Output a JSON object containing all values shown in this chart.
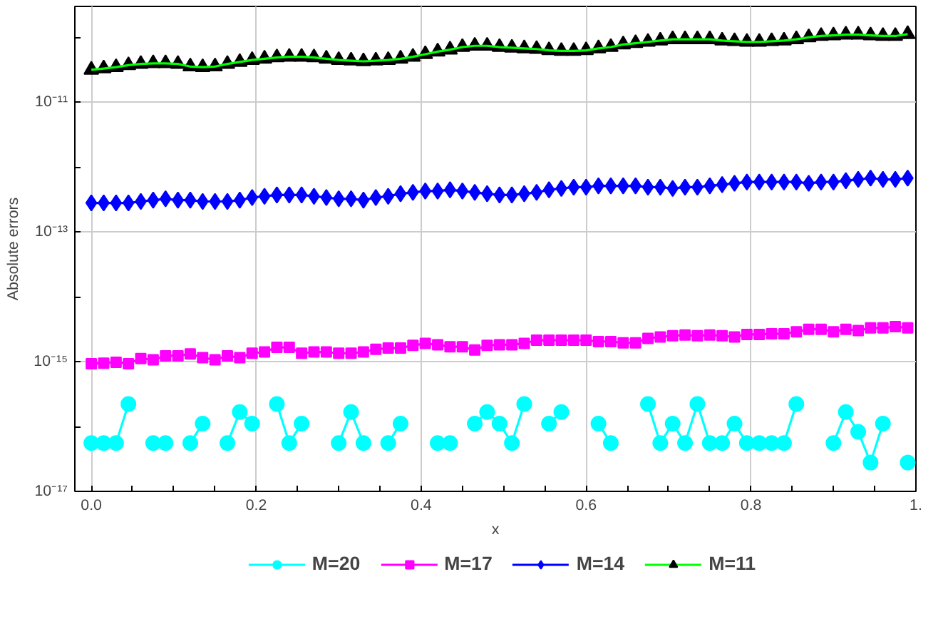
{
  "chart_data": {
    "type": "line",
    "xlabel": "x",
    "ylabel": "Absolute errors",
    "log": "y",
    "grid": true,
    "legend": "bottom",
    "x": [
      0,
      0.015,
      0.03,
      0.045,
      0.06,
      0.075,
      0.09,
      0.105,
      0.12,
      0.135,
      0.15,
      0.165,
      0.18,
      0.195,
      0.21,
      0.225,
      0.24,
      0.255,
      0.27,
      0.285,
      0.3,
      0.315,
      0.33,
      0.345,
      0.36,
      0.375,
      0.39,
      0.405,
      0.42,
      0.435,
      0.45,
      0.465,
      0.48,
      0.495,
      0.51,
      0.525,
      0.54,
      0.555,
      0.57,
      0.585,
      0.6,
      0.615,
      0.63,
      0.645,
      0.66,
      0.675,
      0.69,
      0.705,
      0.72,
      0.735,
      0.75,
      0.765,
      0.78,
      0.795,
      0.81,
      0.825,
      0.84,
      0.855,
      0.87,
      0.885,
      0.9,
      0.915,
      0.93,
      0.945,
      0.96,
      0.975,
      0.99
    ],
    "xlim": [
      -0.02,
      1.0
    ],
    "xticks": [
      {
        "value": 0,
        "label": "0.0"
      },
      {
        "value": 0.05,
        "label": null
      },
      {
        "value": 0.1,
        "label": null
      },
      {
        "value": 0.15,
        "label": null
      },
      {
        "value": 0.2,
        "label": "0.2"
      },
      {
        "value": 0.25,
        "label": null
      },
      {
        "value": 0.3,
        "label": null
      },
      {
        "value": 0.35,
        "label": null
      },
      {
        "value": 0.4,
        "label": "0.4"
      },
      {
        "value": 0.45,
        "label": null
      },
      {
        "value": 0.5,
        "label": null
      },
      {
        "value": 0.55,
        "label": null
      },
      {
        "value": 0.6,
        "label": "0.6"
      },
      {
        "value": 0.65,
        "label": null
      },
      {
        "value": 0.7,
        "label": null
      },
      {
        "value": 0.75,
        "label": null
      },
      {
        "value": 0.8,
        "label": "0.8"
      },
      {
        "value": 0.85,
        "label": null
      },
      {
        "value": 0.9,
        "label": null
      },
      {
        "value": 0.95,
        "label": null
      },
      {
        "value": 1.0,
        "label": "1."
      }
    ],
    "ylim": [
      1e-17,
      3e-10
    ],
    "yticks": [
      {
        "value": 1e-17,
        "label": "10⁻¹⁷"
      },
      {
        "value": 1e-16,
        "label": null
      },
      {
        "value": 1e-15,
        "label": "10⁻¹⁵"
      },
      {
        "value": 1e-14,
        "label": null
      },
      {
        "value": 1e-13,
        "label": "10⁻¹³"
      },
      {
        "value": 1e-12,
        "label": null
      },
      {
        "value": 1e-11,
        "label": "10⁻¹¹"
      },
      {
        "value": 1e-10,
        "label": null
      }
    ],
    "series": [
      {
        "name": "M=20",
        "color": "#00ffff",
        "marker": "circle",
        "values": [
          5.55e-17,
          5.55e-17,
          5.55e-17,
          2.22e-16,
          null,
          5.55e-17,
          5.55e-17,
          null,
          5.55e-17,
          1.11e-16,
          null,
          5.55e-17,
          1.67e-16,
          1.11e-16,
          null,
          2.22e-16,
          5.55e-17,
          1.11e-16,
          null,
          null,
          5.55e-17,
          1.67e-16,
          5.55e-17,
          null,
          5.55e-17,
          1.11e-16,
          null,
          null,
          5.55e-17,
          5.55e-17,
          null,
          1.11e-16,
          1.67e-16,
          1.11e-16,
          5.55e-17,
          2.22e-16,
          null,
          1.11e-16,
          1.67e-16,
          null,
          null,
          1.11e-16,
          5.55e-17,
          null,
          null,
          2.22e-16,
          5.55e-17,
          1.11e-16,
          5.55e-17,
          2.22e-16,
          5.55e-17,
          5.55e-17,
          1.11e-16,
          5.55e-17,
          5.55e-17,
          5.55e-17,
          5.55e-17,
          2.22e-16,
          null,
          null,
          5.55e-17,
          1.67e-16,
          8.3e-17,
          2.78e-17,
          1.11e-16,
          null,
          2.78e-17
        ]
      },
      {
        "name": "M=17",
        "color": "#ff00ff",
        "marker": "square",
        "values": [
          9.3e-16,
          9.5e-16,
          9.8e-16,
          9.3e-16,
          1.12e-15,
          1.07e-15,
          1.23e-15,
          1.23e-15,
          1.32e-15,
          1.15e-15,
          1.07e-15,
          1.23e-15,
          1.15e-15,
          1.35e-15,
          1.41e-15,
          1.66e-15,
          1.66e-15,
          1.35e-15,
          1.41e-15,
          1.41e-15,
          1.35e-15,
          1.35e-15,
          1.41e-15,
          1.55e-15,
          1.62e-15,
          1.62e-15,
          1.78e-15,
          1.91e-15,
          1.82e-15,
          1.7e-15,
          1.7e-15,
          1.51e-15,
          1.78e-15,
          1.82e-15,
          1.82e-15,
          1.91e-15,
          2.14e-15,
          2.14e-15,
          2.14e-15,
          2.14e-15,
          2.14e-15,
          2.04e-15,
          2.04e-15,
          1.95e-15,
          1.95e-15,
          2.29e-15,
          2.4e-15,
          2.51e-15,
          2.57e-15,
          2.51e-15,
          2.57e-15,
          2.51e-15,
          2.4e-15,
          2.63e-15,
          2.63e-15,
          2.69e-15,
          2.69e-15,
          2.88e-15,
          3.16e-15,
          3.16e-15,
          2.88e-15,
          3.16e-15,
          3.02e-15,
          3.31e-15,
          3.31e-15,
          3.47e-15,
          3.31e-15
        ]
      },
      {
        "name": "M=14",
        "color": "#0000ff",
        "marker": "diamond",
        "values": [
          2.8e-13,
          2.8e-13,
          2.8e-13,
          2.8e-13,
          2.95e-13,
          3.09e-13,
          3.24e-13,
          3.09e-13,
          3.09e-13,
          2.95e-13,
          2.95e-13,
          2.95e-13,
          3.09e-13,
          3.39e-13,
          3.55e-13,
          3.72e-13,
          3.72e-13,
          3.72e-13,
          3.55e-13,
          3.39e-13,
          3.24e-13,
          3.24e-13,
          3.09e-13,
          3.39e-13,
          3.55e-13,
          3.89e-13,
          4.07e-13,
          4.27e-13,
          4.27e-13,
          4.47e-13,
          4.27e-13,
          4.07e-13,
          3.89e-13,
          3.72e-13,
          3.72e-13,
          3.89e-13,
          4.07e-13,
          4.47e-13,
          4.68e-13,
          4.9e-13,
          4.9e-13,
          5.13e-13,
          5.13e-13,
          5.13e-13,
          5.13e-13,
          4.9e-13,
          4.9e-13,
          4.68e-13,
          4.9e-13,
          4.9e-13,
          5.13e-13,
          5.37e-13,
          5.62e-13,
          5.89e-13,
          5.89e-13,
          5.89e-13,
          5.89e-13,
          5.89e-13,
          5.62e-13,
          5.89e-13,
          5.89e-13,
          6.17e-13,
          6.46e-13,
          6.76e-13,
          6.46e-13,
          6.46e-13,
          6.76e-13
        ]
      },
      {
        "name": "M=11",
        "color": "#00ff00",
        "marker": "triangle",
        "values": [
          3.16e-11,
          3.31e-11,
          3.47e-11,
          3.72e-11,
          3.89e-11,
          3.98e-11,
          3.98e-11,
          3.89e-11,
          3.55e-11,
          3.47e-11,
          3.55e-11,
          3.89e-11,
          4.17e-11,
          4.47e-11,
          4.68e-11,
          4.9e-11,
          5.01e-11,
          5.01e-11,
          4.9e-11,
          4.68e-11,
          4.47e-11,
          4.37e-11,
          4.27e-11,
          4.37e-11,
          4.47e-11,
          4.68e-11,
          5.01e-11,
          5.5e-11,
          6.03e-11,
          6.46e-11,
          7.08e-11,
          7.41e-11,
          7.41e-11,
          7.08e-11,
          6.92e-11,
          6.76e-11,
          6.61e-11,
          6.31e-11,
          6.17e-11,
          6.17e-11,
          6.31e-11,
          6.76e-11,
          7.08e-11,
          7.76e-11,
          8.13e-11,
          8.51e-11,
          8.91e-11,
          9.33e-11,
          9.33e-11,
          9.33e-11,
          9.33e-11,
          8.91e-11,
          8.71e-11,
          8.51e-11,
          8.51e-11,
          8.71e-11,
          8.91e-11,
          9.33e-11,
          1e-10,
          1.05e-10,
          1.07e-10,
          1.1e-10,
          1.1e-10,
          1.07e-10,
          1.05e-10,
          1.05e-10,
          1.12e-10
        ],
        "colors": [
          "#000000",
          "#000000",
          "#000000",
          "#000000",
          "#000000",
          "#000000",
          "#000000",
          "#000000",
          "#000000",
          "#000000",
          "#000000",
          "#000000",
          "#000000",
          "#000000",
          "#000000",
          "#000000",
          "#000000",
          "#000000",
          "#000000",
          "#000000",
          "#000000",
          "#000000",
          "#000000",
          "#000000",
          "#000000",
          "#000000",
          "#000000",
          "#000000",
          "#000000",
          "#000000",
          "#000000",
          "#000000",
          "#000000",
          "#000000",
          "#000000",
          "#000000",
          "#000000",
          "#000000",
          "#000000",
          "#000000",
          "#000000",
          "#000000",
          "#000000",
          "#000000",
          "#000000",
          "#000000",
          "#000000",
          "#000000",
          "#000000",
          "#000000",
          "#000000",
          "#000000",
          "#000000",
          "#000000",
          "#000000",
          "#000000",
          "#000000",
          "#000000",
          "#000000",
          "#000000",
          "#000000",
          "#000000",
          "#000000",
          "#000000",
          "#000000",
          "#000000",
          "#000000"
        ]
      }
    ]
  }
}
